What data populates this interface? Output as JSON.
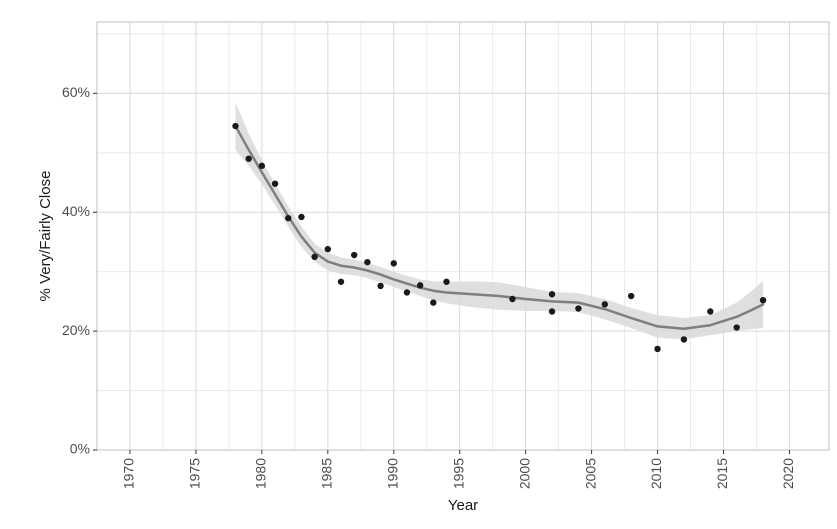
{
  "chart_data": {
    "type": "scatter",
    "title": "",
    "xlabel": "Year",
    "ylabel": "% Very/Fairly Close",
    "xlim": [
      1967.5,
      2023
    ],
    "ylim": [
      0,
      0.72
    ],
    "x_ticks": [
      1970,
      1975,
      1980,
      1985,
      1990,
      1995,
      2000,
      2005,
      2010,
      2015,
      2020
    ],
    "x_tick_labels": [
      "1970",
      "1975",
      "1980",
      "1985",
      "1990",
      "1995",
      "2000",
      "2005",
      "2010",
      "2015",
      "2020"
    ],
    "y_ticks": [
      0,
      0.2,
      0.4,
      0.6
    ],
    "y_tick_labels": [
      "0%",
      "20%",
      "40%",
      "60%"
    ],
    "grid": true,
    "colors": {
      "points": "#1a1a1a",
      "smooth_line": "#7f7f7f",
      "ribbon": "#d9d9d9",
      "grid_major": "#d9d9d9",
      "grid_minor": "#ebebeb",
      "panel_border": "#bfbfbf"
    },
    "points": [
      {
        "x": 1978,
        "y": 0.545
      },
      {
        "x": 1979,
        "y": 0.49
      },
      {
        "x": 1980,
        "y": 0.478
      },
      {
        "x": 1981,
        "y": 0.448
      },
      {
        "x": 1982,
        "y": 0.39
      },
      {
        "x": 1983,
        "y": 0.392
      },
      {
        "x": 1984,
        "y": 0.325
      },
      {
        "x": 1985,
        "y": 0.338
      },
      {
        "x": 1986,
        "y": 0.283
      },
      {
        "x": 1987,
        "y": 0.328
      },
      {
        "x": 1988,
        "y": 0.316
      },
      {
        "x": 1989,
        "y": 0.276
      },
      {
        "x": 1990,
        "y": 0.314
      },
      {
        "x": 1991,
        "y": 0.265
      },
      {
        "x": 1992,
        "y": 0.277
      },
      {
        "x": 1993,
        "y": 0.248
      },
      {
        "x": 1994,
        "y": 0.283
      },
      {
        "x": 1999,
        "y": 0.254
      },
      {
        "x": 2002,
        "y": 0.262
      },
      {
        "x": 2002,
        "y": 0.233
      },
      {
        "x": 2004,
        "y": 0.238
      },
      {
        "x": 2006,
        "y": 0.245
      },
      {
        "x": 2008,
        "y": 0.259
      },
      {
        "x": 2010,
        "y": 0.17
      },
      {
        "x": 2012,
        "y": 0.186
      },
      {
        "x": 2014,
        "y": 0.233
      },
      {
        "x": 2016,
        "y": 0.206
      },
      {
        "x": 2018,
        "y": 0.252
      }
    ],
    "smooth": [
      {
        "x": 1978,
        "y": 0.545,
        "lo": 0.505,
        "hi": 0.585
      },
      {
        "x": 1979,
        "y": 0.505,
        "lo": 0.478,
        "hi": 0.532
      },
      {
        "x": 1980,
        "y": 0.467,
        "lo": 0.447,
        "hi": 0.487
      },
      {
        "x": 1981,
        "y": 0.43,
        "lo": 0.412,
        "hi": 0.448
      },
      {
        "x": 1982,
        "y": 0.393,
        "lo": 0.376,
        "hi": 0.41
      },
      {
        "x": 1983,
        "y": 0.359,
        "lo": 0.342,
        "hi": 0.376
      },
      {
        "x": 1984,
        "y": 0.332,
        "lo": 0.317,
        "hi": 0.347
      },
      {
        "x": 1985,
        "y": 0.317,
        "lo": 0.302,
        "hi": 0.332
      },
      {
        "x": 1986,
        "y": 0.31,
        "lo": 0.296,
        "hi": 0.324
      },
      {
        "x": 1987,
        "y": 0.307,
        "lo": 0.294,
        "hi": 0.32
      },
      {
        "x": 1988,
        "y": 0.302,
        "lo": 0.289,
        "hi": 0.315
      },
      {
        "x": 1989,
        "y": 0.295,
        "lo": 0.282,
        "hi": 0.308
      },
      {
        "x": 1990,
        "y": 0.287,
        "lo": 0.274,
        "hi": 0.3
      },
      {
        "x": 1991,
        "y": 0.28,
        "lo": 0.267,
        "hi": 0.293
      },
      {
        "x": 1992,
        "y": 0.273,
        "lo": 0.259,
        "hi": 0.287
      },
      {
        "x": 1993,
        "y": 0.268,
        "lo": 0.252,
        "hi": 0.284
      },
      {
        "x": 1994,
        "y": 0.265,
        "lo": 0.247,
        "hi": 0.283
      },
      {
        "x": 1996,
        "y": 0.262,
        "lo": 0.24,
        "hi": 0.284
      },
      {
        "x": 1998,
        "y": 0.259,
        "lo": 0.236,
        "hi": 0.282
      },
      {
        "x": 2000,
        "y": 0.254,
        "lo": 0.234,
        "hi": 0.274
      },
      {
        "x": 2002,
        "y": 0.25,
        "lo": 0.234,
        "hi": 0.266
      },
      {
        "x": 2004,
        "y": 0.248,
        "lo": 0.232,
        "hi": 0.264
      },
      {
        "x": 2006,
        "y": 0.237,
        "lo": 0.22,
        "hi": 0.254
      },
      {
        "x": 2008,
        "y": 0.222,
        "lo": 0.205,
        "hi": 0.239
      },
      {
        "x": 2010,
        "y": 0.208,
        "lo": 0.189,
        "hi": 0.227
      },
      {
        "x": 2012,
        "y": 0.204,
        "lo": 0.186,
        "hi": 0.222
      },
      {
        "x": 2014,
        "y": 0.21,
        "lo": 0.193,
        "hi": 0.227
      },
      {
        "x": 2016,
        "y": 0.224,
        "lo": 0.2,
        "hi": 0.248
      },
      {
        "x": 2017,
        "y": 0.234,
        "lo": 0.203,
        "hi": 0.265
      },
      {
        "x": 2018,
        "y": 0.245,
        "lo": 0.205,
        "hi": 0.285
      }
    ]
  }
}
